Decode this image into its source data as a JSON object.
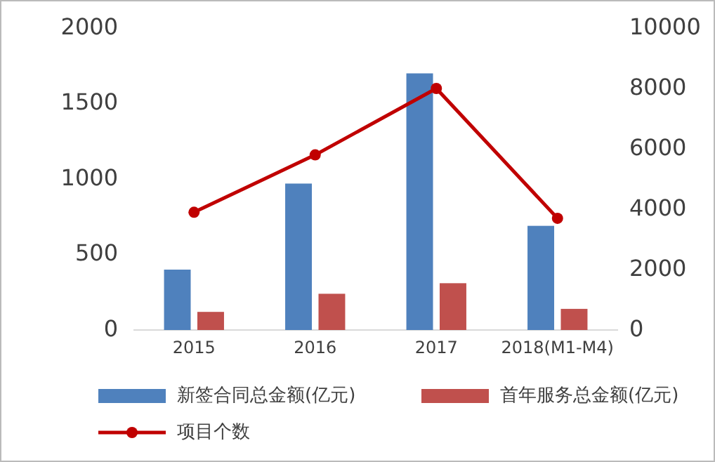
{
  "chart_data": {
    "type": "bar",
    "categories": [
      "2015",
      "2016",
      "2017",
      "2018(M1-M4)"
    ],
    "series": [
      {
        "name": "新签合同总金额(亿元)",
        "color": "#4f81bd",
        "values": [
          400,
          970,
          1700,
          690
        ]
      },
      {
        "name": "首年服务总金额(亿元)",
        "color": "#c0504d",
        "values": [
          120,
          240,
          310,
          140
        ]
      },
      {
        "name": "项目个数",
        "type": "line",
        "axis": "y2",
        "color": "#c00000",
        "values": [
          3900,
          5800,
          8000,
          3700
        ]
      }
    ],
    "ylim": [
      0,
      2000
    ],
    "yticks": [
      0,
      500,
      1000,
      1500,
      2000
    ],
    "y2lim": [
      0,
      10000
    ],
    "y2ticks": [
      0,
      2000,
      4000,
      6000,
      8000,
      10000
    ],
    "marker": "circle",
    "legend": "bottom",
    "grid": false
  }
}
